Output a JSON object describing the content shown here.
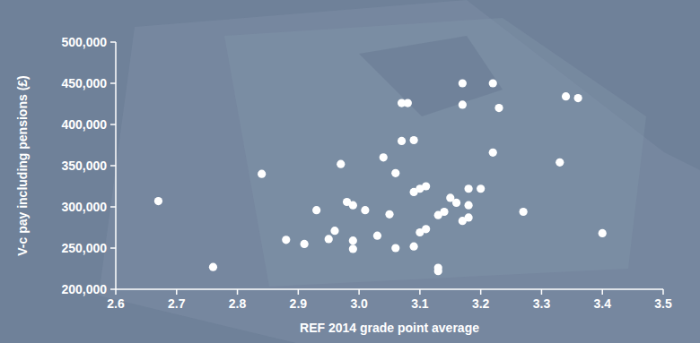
{
  "chart_data": {
    "type": "scatter",
    "x_label": "REF 2014 grade point average",
    "y_label": "V-c pay including pensions (£)",
    "color": "#ffffff",
    "marker": "circle",
    "grid": false,
    "xlim": [
      2.6,
      3.5
    ],
    "xticks": [
      2.6,
      2.7,
      2.8,
      2.9,
      {
        "value": 3,
        "label": "3.0"
      },
      3.1,
      3.2,
      3.3,
      3.4,
      3.5
    ],
    "ylim": [
      200000,
      500000
    ],
    "yticks": [
      {
        "value": 200000,
        "label": "200,000"
      },
      {
        "value": 250000,
        "label": "250,000"
      },
      {
        "value": 300000,
        "label": "300,000"
      },
      {
        "value": 350000,
        "label": "350,000"
      },
      {
        "value": 400000,
        "label": "400,000"
      },
      {
        "value": 450000,
        "label": "450,000"
      },
      {
        "value": 500000,
        "label": "500,000"
      }
    ],
    "x": [
      2.67,
      2.76,
      2.84,
      2.88,
      2.91,
      2.93,
      2.95,
      2.96,
      2.97,
      2.98,
      2.99,
      2.99,
      2.99,
      3.01,
      3.03,
      3.04,
      3.05,
      3.06,
      3.06,
      3.07,
      3.07,
      3.08,
      3.09,
      3.09,
      3.09,
      3.1,
      3.1,
      3.11,
      3.11,
      3.13,
      3.13,
      3.13,
      3.14,
      3.15,
      3.16,
      3.17,
      3.17,
      3.17,
      3.18,
      3.18,
      3.18,
      3.2,
      3.22,
      3.22,
      3.23,
      3.27,
      3.33,
      3.34,
      3.36,
      3.4
    ],
    "values": [
      307000,
      227000,
      340000,
      260000,
      255000,
      296000,
      261000,
      271000,
      352000,
      306000,
      302000,
      259000,
      249000,
      296000,
      265000,
      360000,
      291000,
      341000,
      250000,
      380000,
      426000,
      426000,
      381000,
      318000,
      252000,
      322000,
      269000,
      325000,
      273000,
      290000,
      226000,
      222000,
      294000,
      311000,
      305000,
      450000,
      424000,
      283000,
      322000,
      302000,
      287000,
      322000,
      450000,
      366000,
      420000,
      294000,
      354000,
      434000,
      432000,
      268000
    ]
  }
}
